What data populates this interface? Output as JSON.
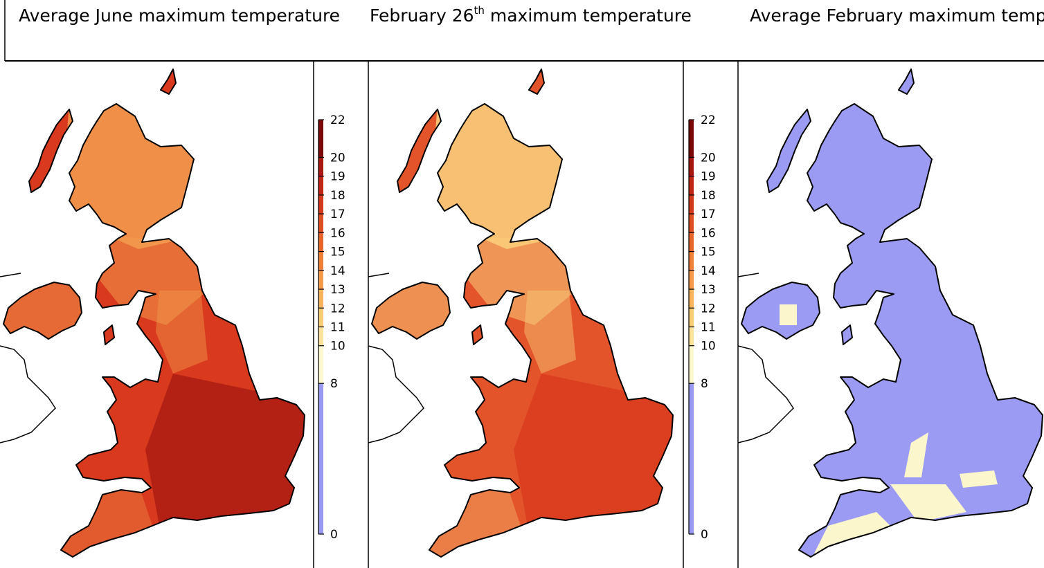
{
  "panels": [
    {
      "id": "june-avg",
      "title_main": "Average June maximum temperature",
      "title_sup": "",
      "title_rest": "",
      "scheme": "warm",
      "has_legend": true
    },
    {
      "id": "feb26",
      "title_main": "February 26",
      "title_sup": "th",
      "title_rest": " maximum temperature",
      "scheme": "warm-light",
      "has_legend": true
    },
    {
      "id": "feb-avg",
      "title_main": "Average February maximum temp",
      "title_sup": "",
      "title_rest": "",
      "scheme": "cold",
      "has_legend": false
    }
  ],
  "legend": {
    "ticks": [
      "22",
      "20",
      "19",
      "18",
      "17",
      "16",
      "15",
      "14",
      "13",
      "12",
      "11",
      "10",
      "8",
      "0"
    ],
    "tick_values": [
      22,
      20,
      19,
      18,
      17,
      16,
      15,
      14,
      13,
      12,
      11,
      10,
      8,
      0
    ],
    "bands": [
      {
        "from": 0,
        "to": 8,
        "color": "#9999f0"
      },
      {
        "from": 8,
        "to": 10,
        "color": "#fbf7cf"
      },
      {
        "from": 10,
        "to": 11,
        "color": "#fbe39b"
      },
      {
        "from": 11,
        "to": 12,
        "color": "#f9cd75"
      },
      {
        "from": 12,
        "to": 13,
        "color": "#f7b45d"
      },
      {
        "from": 13,
        "to": 14,
        "color": "#f49a4a"
      },
      {
        "from": 14,
        "to": 15,
        "color": "#ef8038"
      },
      {
        "from": 15,
        "to": 16,
        "color": "#e8662c"
      },
      {
        "from": 16,
        "to": 17,
        "color": "#de4e22"
      },
      {
        "from": 17,
        "to": 18,
        "color": "#d3381a"
      },
      {
        "from": 18,
        "to": 19,
        "color": "#c12615"
      },
      {
        "from": 19,
        "to": 20,
        "color": "#a81610"
      },
      {
        "from": 20,
        "to": 22,
        "color": "#7a0808"
      }
    ]
  },
  "colors": {
    "warm_base": "#d93a1e",
    "warm_dark": "#a91a12",
    "warm_highland": "#f29a4c",
    "warm_light_base": "#e3542a",
    "warm_light_highland": "#f9cc7a",
    "cold_base": "#9b9bf4",
    "cold_warm_patch": "#fbf6cc",
    "outline": "#000000"
  }
}
